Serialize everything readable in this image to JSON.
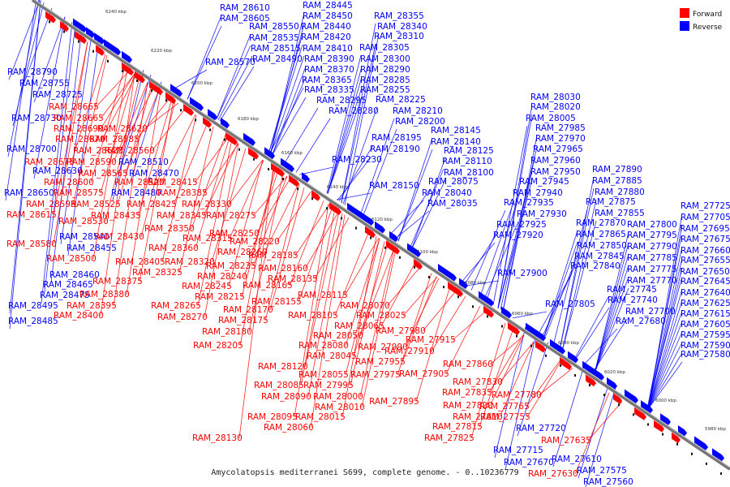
{
  "caption": "Amycolatopsis mediterranei S699, complete genome. - 0..10236779",
  "legend": [
    {
      "label": "Forward",
      "color": "#ff0000"
    },
    {
      "label": "Reverse",
      "color": "#0000ff"
    }
  ],
  "colors": {
    "forward": "#ff0000",
    "reverse": "#0000ff",
    "axis": "#777777"
  },
  "ticks": [
    "6240 kbp",
    "6220 kbp",
    "6200 kbp",
    "6180 kbp",
    "6160 kbp",
    "6140 kbp",
    "6120 kbp",
    "6100 kbp",
    "6080 kbp",
    "6060 kbp",
    "6040 kbp",
    "6020 kbp",
    "6000 kbp",
    "5980 kbp"
  ],
  "labels": {
    "blue": [
      "RAM_28610",
      "RAM_28605",
      "RAM_28445",
      "RAM_28450",
      "RAM_28355",
      "RAM_28550",
      "RAM_28440",
      "RAM_28340",
      "RAM_28535",
      "RAM_28420",
      "RAM_28310",
      "RAM_28515",
      "RAM_28410",
      "RAM_28305",
      "RAM_28570",
      "RAM_28490",
      "RAM_28390",
      "RAM_28300",
      "RAM_28370",
      "RAM_28290",
      "RAM_28790",
      "RAM_28365",
      "RAM_28285",
      "RAM_28755",
      "RAM_28335",
      "RAM_28255",
      "RAM_28725",
      "RAM_28295",
      "RAM_28225",
      "RAM_28280",
      "RAM_28210",
      "RAM_28730",
      "RAM_28200",
      "RAM_28700",
      "RAM_28195",
      "RAM_28145",
      "RAM_28190",
      "RAM_28140",
      "RAM_28125",
      "RAM_28630",
      "RAM_28230",
      "RAM_28110",
      "RAM_28510",
      "RAM_28470",
      "RAM_28100",
      "RAM_28650",
      "RAM_28480",
      "RAM_28150",
      "RAM_28075",
      "RAM_28040",
      "RAM_28035",
      "RAM_28030",
      "RAM_28020",
      "RAM_28005",
      "RAM_27985",
      "RAM_27970",
      "RAM_27965",
      "RAM_27960",
      "RAM_27950",
      "RAM_27890",
      "RAM_27945",
      "RAM_27885",
      "RAM_27940",
      "RAM_27880",
      "RAM_27935",
      "RAM_27875",
      "RAM_27930",
      "RAM_27855",
      "RAM_27925",
      "RAM_27870",
      "RAM_27800",
      "RAM_27920",
      "RAM_27865",
      "RAM_27795",
      "RAM_27850",
      "RAM_27790",
      "RAM_27845",
      "RAM_27785",
      "RAM_27840",
      "RAM_27775",
      "RAM_27900",
      "RAM_27770",
      "RAM_27745",
      "RAM_27740",
      "RAM_27805",
      "RAM_27700",
      "RAM_27680",
      "RAM_27725",
      "RAM_27705",
      "RAM_27695",
      "RAM_27675",
      "RAM_27660",
      "RAM_27655",
      "RAM_27650",
      "RAM_27645",
      "RAM_27640",
      "RAM_27625",
      "RAM_27615",
      "RAM_27605",
      "RAM_27595",
      "RAM_27590",
      "RAM_27580",
      "RAM_28540",
      "RAM_28455",
      "RAM_28460",
      "RAM_28465",
      "RAM_28475",
      "RAM_28495",
      "RAM_28485",
      "RAM_27720",
      "RAM_27715",
      "RAM_27670",
      "RAM_27610",
      "RAM_27575",
      "RAM_27560"
    ],
    "red": [
      "RAM_28665",
      "RAM_28665",
      "RAM_28690",
      "RAM_28620",
      "RAM_28670",
      "RAM_28585",
      "RAM_28625",
      "RAM_28560",
      "RAM_28675",
      "RAM_28590",
      "RAM_28565",
      "RAM_28520",
      "RAM_28415",
      "RAM_28600",
      "RAM_28575",
      "RAM_28385",
      "RAM_28595",
      "RAM_28525",
      "RAM_28425",
      "RAM_28330",
      "RAM_28615",
      "RAM_28435",
      "RAM_28345",
      "RAM_28275",
      "RAM_28530",
      "RAM_28350",
      "RAM_28430",
      "RAM_28250",
      "RAM_28315",
      "RAM_28580",
      "RAM_28360",
      "RAM_28220",
      "RAM_28500",
      "RAM_28405",
      "RAM_28320",
      "RAM_28260",
      "RAM_28185",
      "RAM_28325",
      "RAM_28235",
      "RAM_28160",
      "RAM_28240",
      "RAM_28375",
      "RAM_28245",
      "RAM_28165",
      "RAM_28135",
      "RAM_28380",
      "RAM_28215",
      "RAM_28155",
      "RAM_28395",
      "RAM_28265",
      "RAM_28115",
      "RAM_28400",
      "RAM_28170",
      "RAM_28070",
      "RAM_28270",
      "RAM_28175",
      "RAM_28105",
      "RAM_28025",
      "RAM_28065",
      "RAM_28180",
      "RAM_28050",
      "RAM_27980",
      "RAM_28205",
      "RAM_28080",
      "RAM_27990",
      "RAM_27915",
      "RAM_28045",
      "RAM_27910",
      "RAM_28120",
      "RAM_27955",
      "RAM_28055",
      "RAM_27975",
      "RAM_27905",
      "RAM_27860",
      "RAM_28085",
      "RAM_27995",
      "RAM_27830",
      "RAM_28090",
      "RAM_28000",
      "RAM_27835",
      "RAM_27780",
      "RAM_27895",
      "RAM_28010",
      "RAM_27820",
      "RAM_27765",
      "RAM_28095",
      "RAM_28015",
      "RAM_27810",
      "RAM_27755",
      "RAM_28060",
      "RAM_27815",
      "RAM_28130",
      "RAM_27825",
      "RAM_27635",
      "RAM_27630"
    ]
  }
}
